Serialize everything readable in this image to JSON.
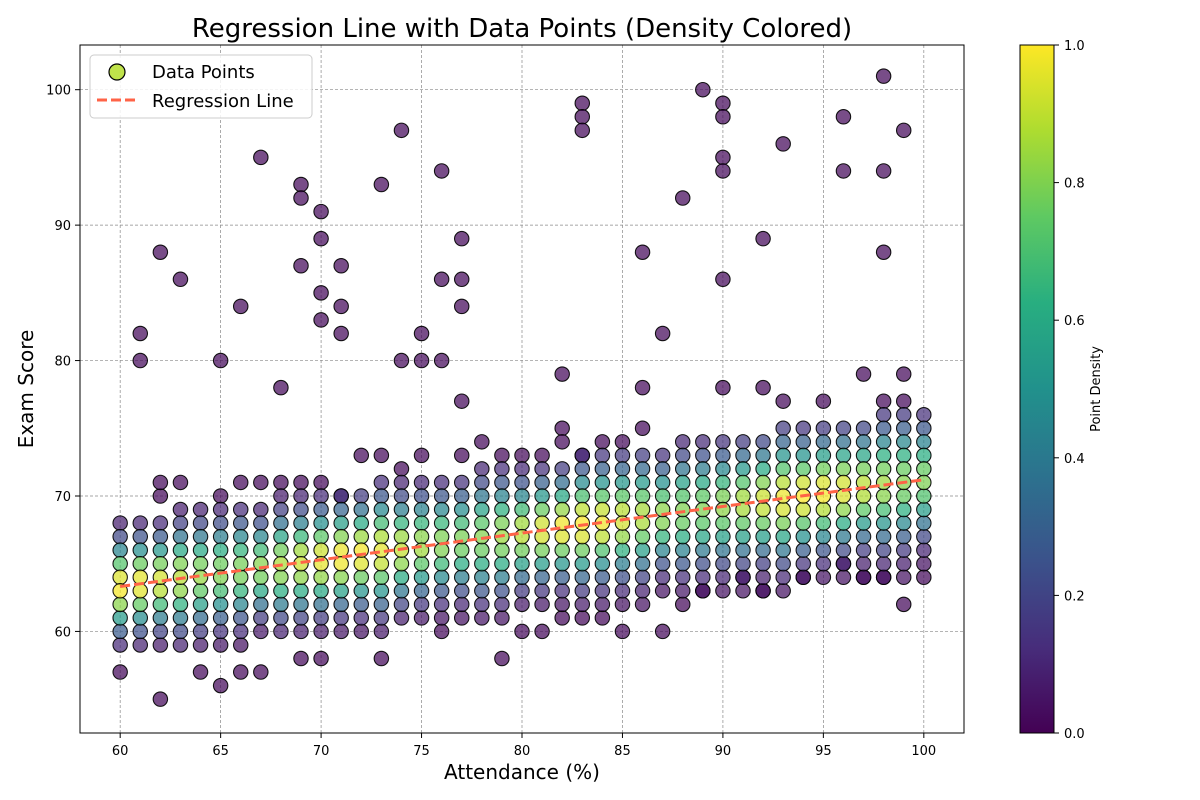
{
  "chart_data": {
    "type": "scatter",
    "title": "Regression Line with Data Points (Density Colored)",
    "xlabel": "Attendance (%)",
    "ylabel": "Exam Score",
    "xlim": [
      58,
      102
    ],
    "ylim": [
      52.5,
      103.3
    ],
    "xticks": [
      60,
      65,
      70,
      75,
      80,
      85,
      90,
      95,
      100
    ],
    "yticks": [
      60,
      70,
      80,
      90,
      100
    ],
    "grid": true,
    "legend": {
      "position": "top-left",
      "entries": [
        {
          "label": "Data Points",
          "kind": "marker",
          "color": "#b5de2b"
        },
        {
          "label": "Regression Line",
          "kind": "line",
          "color": "#ff6347"
        }
      ]
    },
    "colorbar": {
      "label": "Point Density",
      "colormap": "viridis",
      "range": [
        0,
        1
      ],
      "ticks": [
        0.0,
        0.2,
        0.4,
        0.6,
        0.8,
        1.0
      ],
      "tick_labels": [
        "0.0",
        "0.2",
        "0.4",
        "0.6",
        "0.8",
        "1.0"
      ]
    },
    "regression": {
      "slope": 0.197,
      "intercept": 51.5,
      "x_range": [
        60,
        100
      ],
      "color": "#ff6347"
    },
    "series": [
      {
        "name": "Data Points",
        "band": {
          "x_start": 60,
          "x_end": 100,
          "low_start": 58.5,
          "low_end": 64.5,
          "high_start": 68,
          "high_end": 76
        },
        "outliers": [
          [
            60,
            57
          ],
          [
            61,
            80
          ],
          [
            61,
            82
          ],
          [
            62,
            88
          ],
          [
            62,
            55
          ],
          [
            62,
            70
          ],
          [
            62,
            71
          ],
          [
            63,
            86
          ],
          [
            63,
            71
          ],
          [
            64,
            57
          ],
          [
            65,
            80
          ],
          [
            65,
            56
          ],
          [
            65,
            70
          ],
          [
            66,
            84
          ],
          [
            66,
            57
          ],
          [
            66,
            71
          ],
          [
            67,
            95
          ],
          [
            67,
            57
          ],
          [
            67,
            71
          ],
          [
            68,
            78
          ],
          [
            68,
            71
          ],
          [
            69,
            93
          ],
          [
            69,
            92
          ],
          [
            69,
            87
          ],
          [
            69,
            58
          ],
          [
            69,
            71
          ],
          [
            70,
            91
          ],
          [
            70,
            89
          ],
          [
            70,
            85
          ],
          [
            70,
            83
          ],
          [
            70,
            58
          ],
          [
            70,
            71
          ],
          [
            71,
            87
          ],
          [
            71,
            84
          ],
          [
            71,
            82
          ],
          [
            71,
            70
          ],
          [
            72,
            73
          ],
          [
            73,
            93
          ],
          [
            73,
            58
          ],
          [
            73,
            73
          ],
          [
            74,
            97
          ],
          [
            74,
            80
          ],
          [
            74,
            72
          ],
          [
            75,
            82
          ],
          [
            75,
            80
          ],
          [
            75,
            73
          ],
          [
            76,
            94
          ],
          [
            76,
            86
          ],
          [
            76,
            80
          ],
          [
            76,
            60
          ],
          [
            77,
            89
          ],
          [
            77,
            86
          ],
          [
            77,
            84
          ],
          [
            77,
            77
          ],
          [
            77,
            73
          ],
          [
            78,
            74
          ],
          [
            79,
            58
          ],
          [
            79,
            73
          ],
          [
            80,
            60
          ],
          [
            80,
            73
          ],
          [
            81,
            60
          ],
          [
            81,
            73
          ],
          [
            82,
            79
          ],
          [
            82,
            75
          ],
          [
            82,
            74
          ],
          [
            82,
            61
          ],
          [
            83,
            99
          ],
          [
            83,
            98
          ],
          [
            83,
            97
          ],
          [
            83,
            73
          ],
          [
            83,
            61
          ],
          [
            84,
            74
          ],
          [
            84,
            61
          ],
          [
            85,
            60
          ],
          [
            85,
            74
          ],
          [
            86,
            88
          ],
          [
            86,
            78
          ],
          [
            86,
            75
          ],
          [
            87,
            82
          ],
          [
            87,
            60
          ],
          [
            88,
            92
          ],
          [
            88,
            62
          ],
          [
            89,
            100
          ],
          [
            89,
            63
          ],
          [
            90,
            99
          ],
          [
            90,
            98
          ],
          [
            90,
            95
          ],
          [
            90,
            94
          ],
          [
            90,
            86
          ],
          [
            90,
            78
          ],
          [
            91,
            64
          ],
          [
            92,
            89
          ],
          [
            92,
            78
          ],
          [
            92,
            63
          ],
          [
            93,
            96
          ],
          [
            93,
            77
          ],
          [
            94,
            64
          ],
          [
            95,
            77
          ],
          [
            96,
            98
          ],
          [
            96,
            94
          ],
          [
            96,
            65
          ],
          [
            97,
            79
          ],
          [
            97,
            64
          ],
          [
            98,
            101
          ],
          [
            98,
            94
          ],
          [
            98,
            88
          ],
          [
            98,
            77
          ],
          [
            98,
            64
          ],
          [
            99,
            97
          ],
          [
            99,
            79
          ],
          [
            99,
            77
          ],
          [
            99,
            62
          ],
          [
            100,
            64
          ]
        ]
      }
    ]
  }
}
